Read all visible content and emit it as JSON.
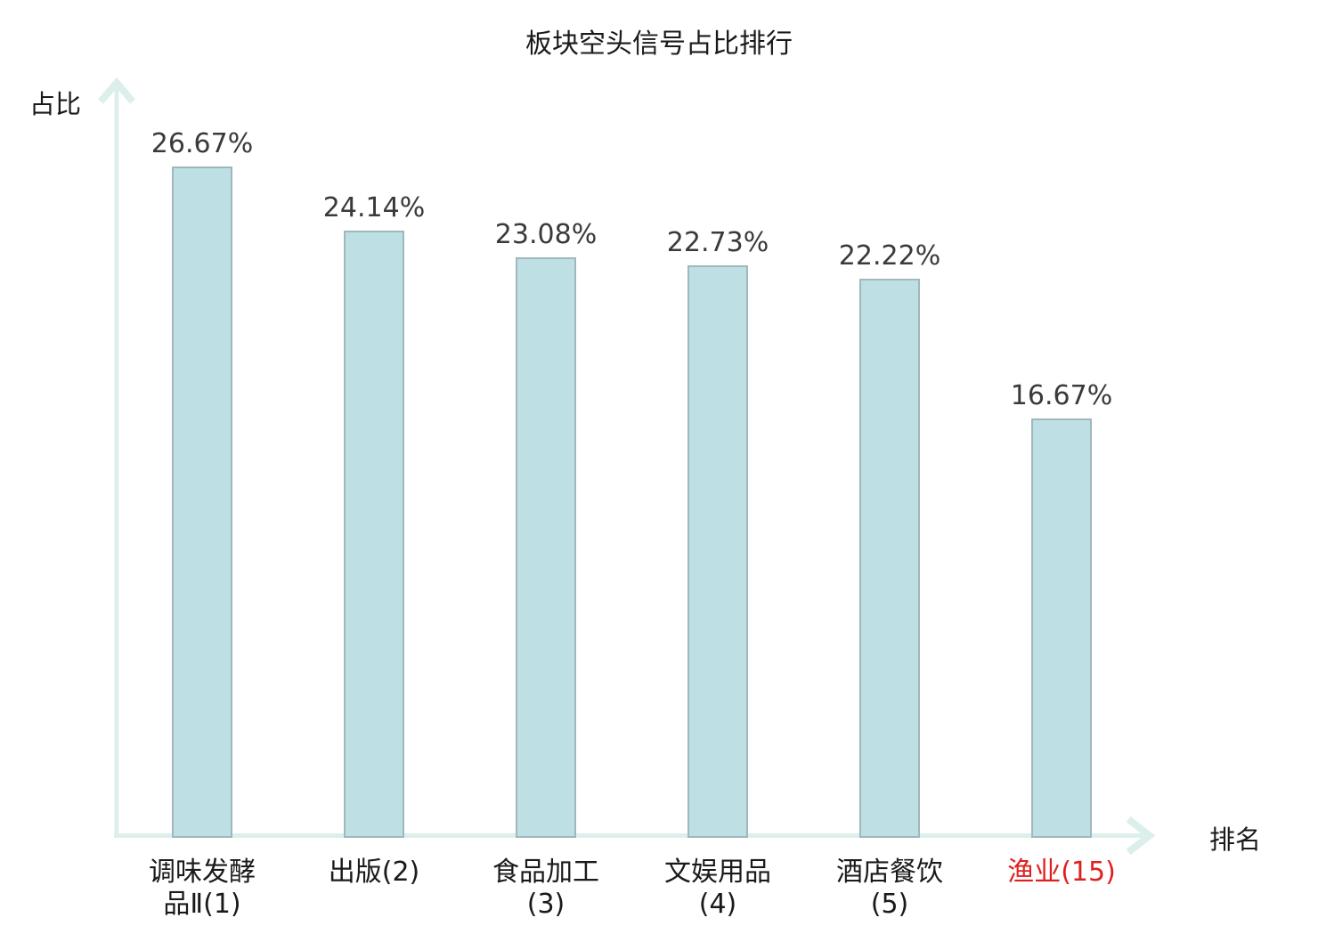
{
  "chart_data": {
    "type": "bar",
    "title": "板块空头信号占比排行",
    "ylabel": "占比",
    "xlabel": "排名",
    "categories": [
      {
        "label": "调味发酵品Ⅱ(1)",
        "highlight": false
      },
      {
        "label": "出版(2)",
        "highlight": false
      },
      {
        "label": "食品加工(3)",
        "highlight": false
      },
      {
        "label": "文娱用品(4)",
        "highlight": false
      },
      {
        "label": "酒店餐饮(5)",
        "highlight": false
      },
      {
        "label": "渔业(15)",
        "highlight": true
      }
    ],
    "values": [
      26.67,
      24.14,
      23.08,
      22.73,
      22.22,
      16.67
    ],
    "value_labels": [
      "26.67%",
      "24.14%",
      "23.08%",
      "22.73%",
      "22.22%",
      "16.67%"
    ],
    "ylim": [
      0,
      30
    ],
    "grid": false,
    "legend": null,
    "colors": {
      "bar_fill": "#bee0e5",
      "bar_border": "#9fb8bc",
      "axis": "#ddefec",
      "value_text": "#3a3a3a",
      "category_text": "#1a1a1a",
      "highlight_text": "#e02020",
      "title_text": "#1a1a1a"
    }
  }
}
